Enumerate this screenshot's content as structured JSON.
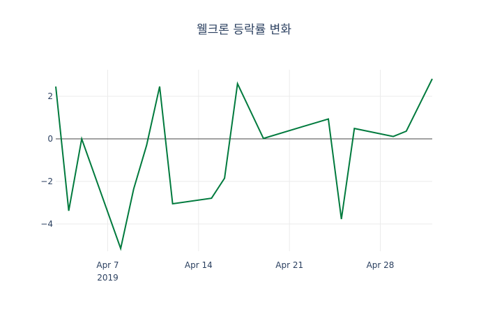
{
  "chart_data": {
    "type": "line",
    "title": "웰크론 등락률 변화",
    "xlabel": "",
    "ylabel": "",
    "x": [
      "2019-04-03",
      "2019-04-04",
      "2019-04-05",
      "2019-04-08",
      "2019-04-09",
      "2019-04-10",
      "2019-04-11",
      "2019-04-12",
      "2019-04-15",
      "2019-04-16",
      "2019-04-17",
      "2019-04-19",
      "2019-04-22",
      "2019-04-23",
      "2019-04-24",
      "2019-04-25",
      "2019-04-26",
      "2019-04-29",
      "2019-04-30",
      "2019-05-02"
    ],
    "series": [
      {
        "name": "등락률",
        "color": "#007a3d",
        "values": [
          2.46,
          -3.38,
          0.0,
          -5.15,
          -2.36,
          -0.3,
          2.46,
          -3.05,
          -2.79,
          -1.85,
          2.59,
          0.02,
          0.57,
          0.75,
          0.93,
          -3.77,
          0.49,
          0.11,
          0.36,
          2.82
        ]
      }
    ],
    "x_ticks": [
      {
        "date": "2019-04-07",
        "label": "Apr 7",
        "sublabel": "2019"
      },
      {
        "date": "2019-04-14",
        "label": "Apr 14",
        "sublabel": ""
      },
      {
        "date": "2019-04-21",
        "label": "Apr 21",
        "sublabel": ""
      },
      {
        "date": "2019-04-28",
        "label": "Apr 28",
        "sublabel": ""
      }
    ],
    "y_ticks": [
      2,
      0,
      -2,
      -4
    ],
    "y_tick_labels": [
      "2",
      "0",
      "−2",
      "−4"
    ],
    "xlim": [
      "2019-04-03",
      "2019-05-02"
    ],
    "ylim": [
      -5.35,
      3.25
    ],
    "grid": true,
    "legend": false
  }
}
